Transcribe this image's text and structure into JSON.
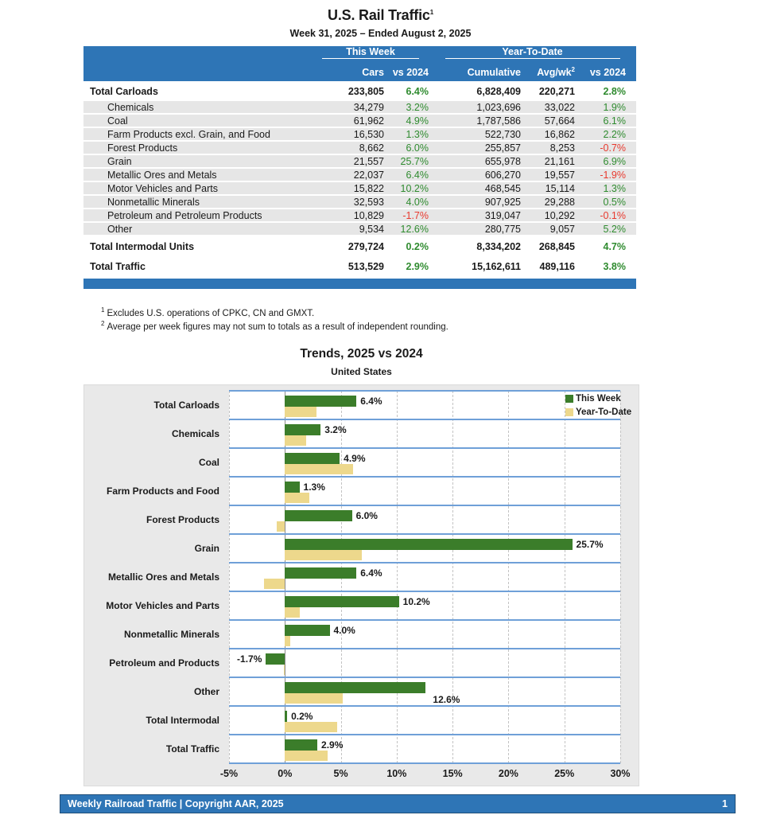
{
  "header": {
    "title": "U.S. Rail Traffic",
    "title_sup": "1",
    "subtitle": "Week 31, 2025 – Ended August 2, 2025"
  },
  "table": {
    "group_headers": {
      "this_week": "This Week",
      "year_to_date": "Year-To-Date"
    },
    "sub_headers": {
      "cars": "Cars",
      "this_week_vs": "vs 2024",
      "cumulative": "Cumulative",
      "avg_wk": "Avg/wk",
      "avg_wk_sup": "2",
      "ytd_vs": "vs 2024"
    },
    "rows": [
      {
        "label": "Total Carloads",
        "total": true,
        "cars": "233,805",
        "wk_pct": "6.4%",
        "cum": "6,828,409",
        "avg": "220,271",
        "ytd_pct": "2.8%"
      },
      {
        "label": "Chemicals",
        "total": false,
        "cars": "34,279",
        "wk_pct": "3.2%",
        "cum": "1,023,696",
        "avg": "33,022",
        "ytd_pct": "1.9%"
      },
      {
        "label": "Coal",
        "total": false,
        "cars": "61,962",
        "wk_pct": "4.9%",
        "cum": "1,787,586",
        "avg": "57,664",
        "ytd_pct": "6.1%"
      },
      {
        "label": "Farm Products excl. Grain, and Food",
        "total": false,
        "cars": "16,530",
        "wk_pct": "1.3%",
        "cum": "522,730",
        "avg": "16,862",
        "ytd_pct": "2.2%"
      },
      {
        "label": "Forest Products",
        "total": false,
        "cars": "8,662",
        "wk_pct": "6.0%",
        "cum": "255,857",
        "avg": "8,253",
        "ytd_pct": "-0.7%"
      },
      {
        "label": "Grain",
        "total": false,
        "cars": "21,557",
        "wk_pct": "25.7%",
        "cum": "655,978",
        "avg": "21,161",
        "ytd_pct": "6.9%"
      },
      {
        "label": "Metallic Ores and Metals",
        "total": false,
        "cars": "22,037",
        "wk_pct": "6.4%",
        "cum": "606,270",
        "avg": "19,557",
        "ytd_pct": "-1.9%"
      },
      {
        "label": "Motor Vehicles and Parts",
        "total": false,
        "cars": "15,822",
        "wk_pct": "10.2%",
        "cum": "468,545",
        "avg": "15,114",
        "ytd_pct": "1.3%"
      },
      {
        "label": "Nonmetallic Minerals",
        "total": false,
        "cars": "32,593",
        "wk_pct": "4.0%",
        "cum": "907,925",
        "avg": "29,288",
        "ytd_pct": "0.5%"
      },
      {
        "label": "Petroleum and Petroleum Products",
        "total": false,
        "cars": "10,829",
        "wk_pct": "-1.7%",
        "cum": "319,047",
        "avg": "10,292",
        "ytd_pct": "-0.1%"
      },
      {
        "label": "Other",
        "total": false,
        "cars": "9,534",
        "wk_pct": "12.6%",
        "cum": "280,775",
        "avg": "9,057",
        "ytd_pct": "5.2%"
      },
      {
        "label": "Total Intermodal Units",
        "total": true,
        "cars": "279,724",
        "wk_pct": "0.2%",
        "cum": "8,334,202",
        "avg": "268,845",
        "ytd_pct": "4.7%"
      },
      {
        "label": "Total Traffic",
        "total": true,
        "cars": "513,529",
        "wk_pct": "2.9%",
        "cum": "15,162,611",
        "avg": "489,116",
        "ytd_pct": "3.8%"
      }
    ]
  },
  "footnotes": [
    {
      "sup": "1",
      "text": "Excludes U.S. operations of CPKC, CN and GMXT."
    },
    {
      "sup": "2",
      "text": "Average per week figures may not sum to totals as a result of independent rounding."
    }
  ],
  "chart_data": {
    "type": "bar",
    "orientation": "horizontal",
    "title": "Trends, 2025 vs 2024",
    "subtitle": "United States",
    "categories": [
      "Total Carloads",
      "Chemicals",
      "Coal",
      "Farm Products and Food",
      "Forest Products",
      "Grain",
      "Metallic Ores and Metals",
      "Motor Vehicles and Parts",
      "Nonmetallic Minerals",
      "Petroleum and Products",
      "Other",
      "Total Intermodal",
      "Total Traffic"
    ],
    "series": [
      {
        "name": "This Week",
        "color": "#3B7D2A",
        "values": [
          6.4,
          3.2,
          4.9,
          1.3,
          6.0,
          25.7,
          6.4,
          10.2,
          4.0,
          -1.7,
          12.6,
          0.2,
          2.9
        ]
      },
      {
        "name": "Year-To-Date",
        "color": "#EDD88C",
        "values": [
          2.8,
          1.9,
          6.1,
          2.2,
          -0.7,
          6.9,
          -1.9,
          1.3,
          0.5,
          -0.1,
          5.2,
          4.7,
          3.8
        ]
      }
    ],
    "data_labels_series": "This Week",
    "xlim": [
      -5,
      30
    ],
    "xticks": [
      "-5%",
      "0%",
      "5%",
      "10%",
      "15%",
      "20%",
      "25%",
      "30%"
    ],
    "grid": "vertical-dashed",
    "legend_position": "top-right"
  },
  "footer": {
    "text": "Weekly Railroad Traffic | Copyright AAR, 2025",
    "page": "1"
  },
  "colors": {
    "header_blue": "#2E75B6",
    "footer_border": "#1F4E79",
    "row_gray": "#E6E6E6",
    "panel_gray": "#E9E9E9",
    "positive_green": "#2F8B2F",
    "negative_red": "#E8392E",
    "bar_green": "#3B7D2A",
    "bar_yellow": "#EDD88C",
    "band_line_blue": "#6FA0D8",
    "zero_line_gray": "#8C8C8C"
  }
}
